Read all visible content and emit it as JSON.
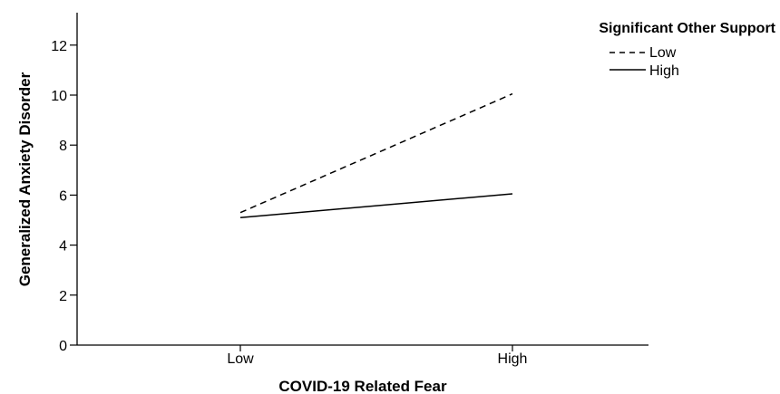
{
  "chart_data": {
    "type": "line",
    "title": "",
    "xlabel": "COVID-19 Related Fear",
    "ylabel": "Generalized Anxiety Disorder",
    "categories": [
      "Low",
      "High"
    ],
    "ylim": [
      0,
      13
    ],
    "yticks": [
      0,
      2,
      4,
      6,
      8,
      10,
      12
    ],
    "grid": false,
    "legend": {
      "title": "Significant Other Support",
      "placement": "top-right"
    },
    "series": [
      {
        "name": "Low",
        "values": [
          5.3,
          10.05
        ],
        "style": "dashed",
        "color": "#000000"
      },
      {
        "name": "High",
        "values": [
          5.1,
          6.05
        ],
        "style": "solid",
        "color": "#000000"
      }
    ]
  }
}
